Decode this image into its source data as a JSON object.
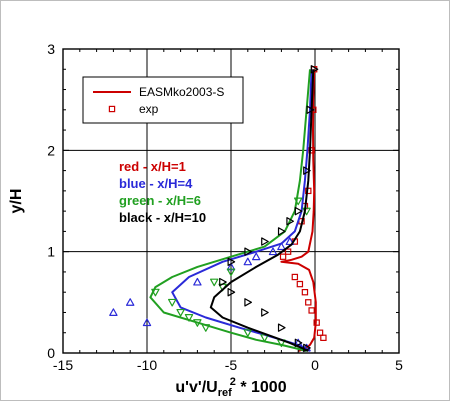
{
  "chart_data": {
    "type": "line",
    "xlabel": {
      "main": "u'v'/U",
      "subscript": "ref",
      "superscript": "2",
      "suffix": " * 1000"
    },
    "ylabel": "y/H",
    "xlim": [
      -15,
      5
    ],
    "ylim": [
      0,
      3
    ],
    "xticks": [
      -15,
      -10,
      -5,
      0,
      5
    ],
    "yticks": [
      0,
      1,
      2,
      3
    ],
    "grid": true,
    "legend": {
      "placement": "top-left",
      "entries": [
        {
          "label": "EASMko2003-S",
          "kind": "line",
          "color": "#cc0000"
        },
        {
          "label": "exp",
          "kind": "square",
          "color": "#cc0000"
        }
      ]
    },
    "annotations": [
      {
        "text": "red - x/H=1",
        "color": "#cc0000"
      },
      {
        "text": "blue - x/H=4",
        "color": "#2a2ad8"
      },
      {
        "text": "green - x/H=6",
        "color": "#21a021"
      },
      {
        "text": "black - x/H=10",
        "color": "#000000"
      }
    ],
    "series": [
      {
        "color": "#cc0000",
        "kind": "line",
        "x": [
          -0.05,
          -0.1,
          -0.12,
          -0.1,
          -0.05,
          -0.08,
          -0.15,
          -0.4,
          -0.8,
          -1.4,
          -2.0,
          -1.0,
          -0.35,
          -0.1,
          0.05,
          0.05,
          -0.05,
          -0.3,
          -0.6,
          -1.0
        ],
        "y": [
          2.8,
          2.5,
          2.2,
          1.9,
          1.6,
          1.4,
          1.2,
          1.0,
          0.95,
          0.92,
          0.9,
          0.88,
          0.82,
          0.7,
          0.5,
          0.3,
          0.15,
          0.08,
          0.04,
          0.02
        ]
      },
      {
        "color": "#cc0000",
        "kind": "square",
        "x": [
          -0.05,
          -0.1,
          -0.2,
          -0.4,
          -0.6,
          -0.8,
          -1.2,
          -1.6,
          -1.9,
          -1.2,
          -0.9,
          -0.6,
          -0.4,
          -0.2,
          0.1,
          0.3,
          0.5
        ],
        "y": [
          2.8,
          2.4,
          2.0,
          1.6,
          1.45,
          1.3,
          1.1,
          1.0,
          0.95,
          0.75,
          0.68,
          0.6,
          0.5,
          0.42,
          0.3,
          0.2,
          0.15
        ]
      },
      {
        "color": "#2a2ad8",
        "kind": "line",
        "x": [
          -0.2,
          -0.3,
          -0.45,
          -0.6,
          -0.8,
          -1.2,
          -2.0,
          -3.5,
          -5.5,
          -7.5,
          -8.5,
          -8.0,
          -6.5,
          -4.5,
          -3.0,
          -1.8,
          -1.0,
          -0.6,
          -0.3
        ],
        "y": [
          2.8,
          2.4,
          2.0,
          1.7,
          1.4,
          1.2,
          1.08,
          1.0,
          0.9,
          0.75,
          0.6,
          0.45,
          0.35,
          0.25,
          0.18,
          0.12,
          0.08,
          0.05,
          0.02
        ]
      },
      {
        "color": "#2a2ad8",
        "kind": "triangle-up",
        "x": [
          -12.0,
          -11.0,
          -10.0,
          -7.0,
          -5.0,
          -4.0,
          -3.5,
          -2.5,
          -2.0,
          -1.5,
          -1.0,
          -0.5
        ],
        "y": [
          0.4,
          0.5,
          0.3,
          0.7,
          0.85,
          0.9,
          0.95,
          1.0,
          1.05,
          1.1,
          0.1,
          0.05
        ]
      },
      {
        "color": "#21a021",
        "kind": "line",
        "x": [
          -0.3,
          -0.5,
          -0.7,
          -0.9,
          -1.2,
          -1.8,
          -3.0,
          -5.0,
          -7.0,
          -8.5,
          -9.5,
          -9.8,
          -9.0,
          -7.0,
          -5.0,
          -3.5,
          -2.0,
          -1.0,
          -0.5
        ],
        "y": [
          2.8,
          2.4,
          2.0,
          1.7,
          1.4,
          1.2,
          1.05,
          0.95,
          0.85,
          0.75,
          0.65,
          0.55,
          0.4,
          0.3,
          0.2,
          0.13,
          0.08,
          0.04,
          0.02
        ]
      },
      {
        "color": "#21a021",
        "kind": "triangle-down",
        "x": [
          -9.5,
          -8.5,
          -8.0,
          -7.5,
          -7.0,
          -6.5,
          -6.0,
          -5.5,
          -5.0,
          -4.0,
          -3.0,
          -2.0,
          -1.0,
          -0.5
        ],
        "y": [
          0.6,
          0.5,
          0.4,
          0.35,
          0.3,
          0.25,
          0.7,
          0.65,
          0.8,
          0.2,
          0.15,
          0.1,
          1.5,
          1.4
        ]
      },
      {
        "color": "#000000",
        "kind": "line",
        "x": [
          -0.1,
          -0.2,
          -0.3,
          -0.4,
          -0.6,
          -0.9,
          -1.4,
          -2.2,
          -3.5,
          -5.0,
          -6.0,
          -6.2,
          -5.5,
          -4.0,
          -2.5,
          -1.5,
          -0.8,
          -0.4
        ],
        "y": [
          2.8,
          2.4,
          2.0,
          1.7,
          1.4,
          1.2,
          1.07,
          0.97,
          0.85,
          0.7,
          0.55,
          0.45,
          0.35,
          0.25,
          0.16,
          0.1,
          0.05,
          0.02
        ]
      },
      {
        "color": "#000000",
        "kind": "triangle-right",
        "x": [
          -0.05,
          -0.3,
          -0.5,
          -1.0,
          -1.5,
          -2.0,
          -3.0,
          -4.0,
          -5.0,
          -5.5,
          -5.0,
          -4.0,
          -3.0,
          -2.0,
          -1.0,
          -0.5
        ],
        "y": [
          2.8,
          2.4,
          1.8,
          1.4,
          1.3,
          1.2,
          1.1,
          1.0,
          0.9,
          0.7,
          0.6,
          0.5,
          0.4,
          0.25,
          0.1,
          0.05
        ]
      }
    ]
  }
}
